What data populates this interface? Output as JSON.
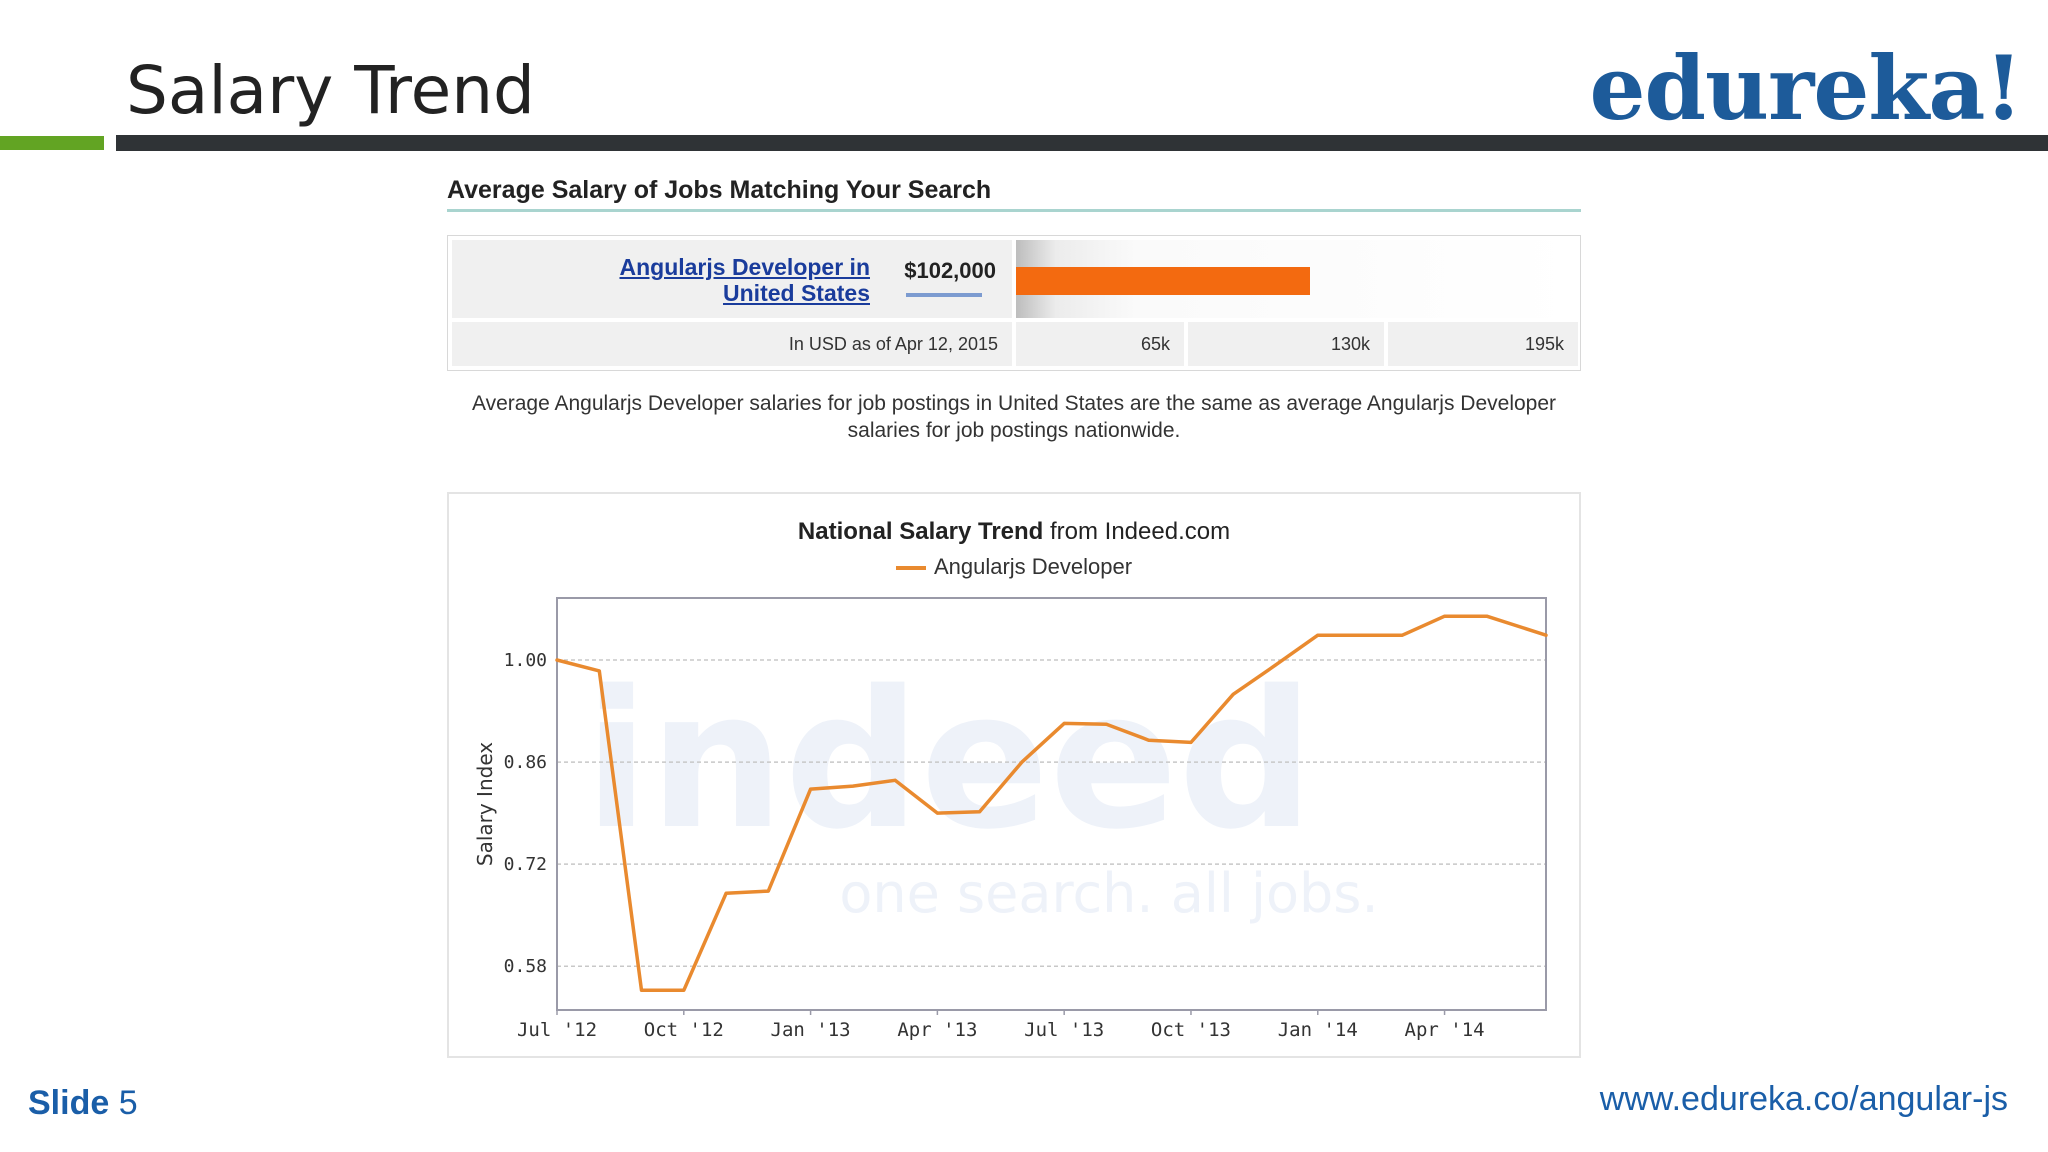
{
  "slide": {
    "title": "Salary Trend",
    "logo": "edureka!",
    "label": "Slide",
    "number": "5",
    "url": "www.edureka.co/angular-js"
  },
  "salary_summary": {
    "heading": "Average Salary of Jobs Matching Your Search",
    "job_link": "Angularjs Developer in United States",
    "amount": "$102,000",
    "amount_value": 102000,
    "currency_note": "In USD as of Apr 12, 2015",
    "scale_labels": [
      "65k",
      "130k",
      "195k"
    ],
    "scale_max": 195000,
    "bar_color": "#f36a10",
    "note": "Average Angularjs Developer salaries for job postings in United States are the same as average Angularjs Developer salaries for job postings nationwide."
  },
  "chart_data": {
    "type": "line",
    "title_bold": "National Salary Trend",
    "title_rest": "from Indeed.com",
    "ylabel": "Salary Index",
    "xlabel": "",
    "watermark": [
      "indeed",
      "one search. all jobs."
    ],
    "ylim": [
      0.52,
      1.085
    ],
    "yticks": [
      1.0,
      0.86,
      0.72,
      0.58
    ],
    "ytick_labels": [
      "1.00",
      "0.86",
      "0.72",
      "0.58"
    ],
    "xlim": [
      0,
      23.4
    ],
    "xticks": [
      0,
      3,
      6,
      9,
      12,
      15,
      18,
      21
    ],
    "xtick_labels": [
      "Jul '12",
      "Oct '12",
      "Jan '13",
      "Apr '13",
      "Jul '13",
      "Oct '13",
      "Jan '14",
      "Apr '14"
    ],
    "grid": true,
    "legend_position": "top-center",
    "series": [
      {
        "name": "Angularjs Developer",
        "color": "#e98a2f",
        "x": [
          0,
          1,
          2,
          3,
          4,
          5,
          6,
          7,
          8,
          9,
          10,
          11,
          12,
          13,
          14,
          15,
          16,
          17,
          18,
          19,
          20,
          21,
          22,
          23.4
        ],
        "values": [
          1.0,
          0.985,
          0.547,
          0.547,
          0.68,
          0.683,
          0.823,
          0.827,
          0.835,
          0.79,
          0.792,
          0.86,
          0.913,
          0.912,
          0.89,
          0.887,
          0.953,
          0.993,
          1.034,
          1.034,
          1.034,
          1.06,
          1.06,
          1.034
        ]
      }
    ]
  }
}
